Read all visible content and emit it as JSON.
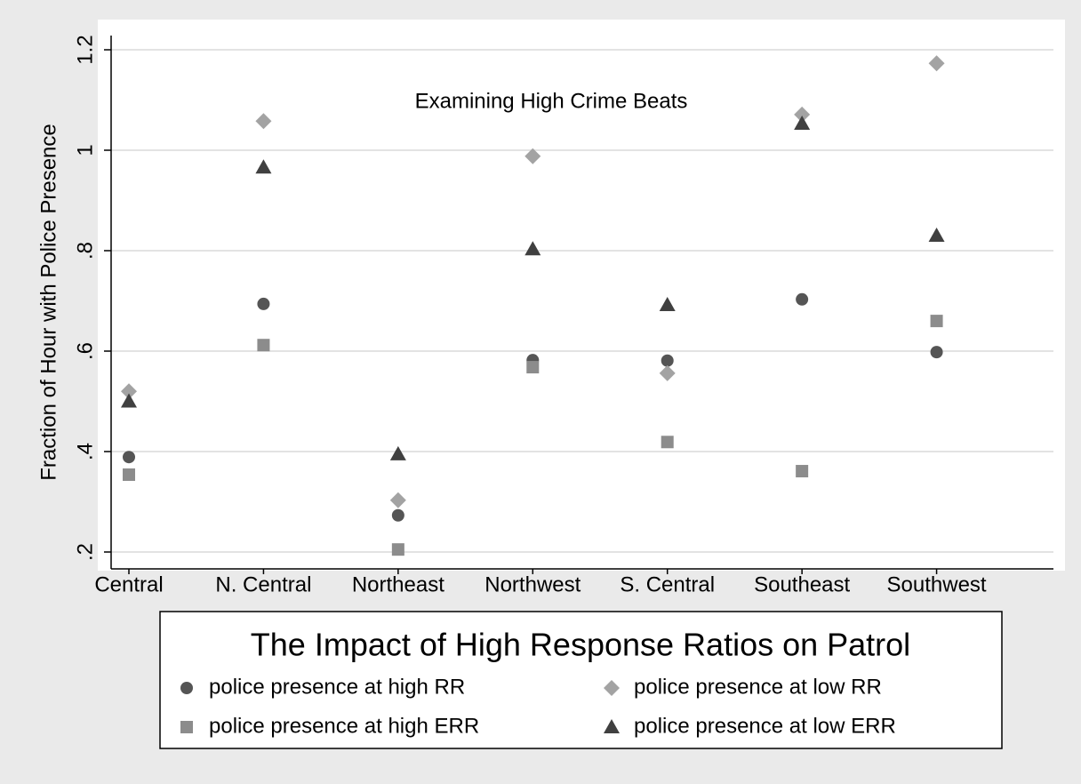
{
  "chart_data": {
    "type": "scatter",
    "annotation": "Examining High Crime Beats",
    "y_label": "Fraction of Hour with Police Presence",
    "legend_title": "The Impact of High Response Ratios on Patrol",
    "categories": [
      "Central",
      "N. Central",
      "Northeast",
      "Northwest",
      "S. Central",
      "Southeast",
      "Southwest"
    ],
    "series": [
      {
        "name": "police presence at high RR",
        "color": "#555555",
        "marker": "circle",
        "values": [
          0.389,
          0.694,
          0.273,
          0.582,
          0.581,
          0.703,
          0.598
        ]
      },
      {
        "name": "police presence at low RR",
        "color": "#a3a3a3",
        "marker": "diamond",
        "values": [
          0.52,
          1.058,
          0.303,
          0.988,
          0.556,
          1.071,
          1.173
        ]
      },
      {
        "name": "police presence at high ERR",
        "color": "#8c8c8c",
        "marker": "square",
        "values": [
          0.354,
          0.612,
          0.205,
          0.568,
          0.419,
          0.361,
          0.66
        ]
      },
      {
        "name": "police presence at low ERR",
        "color": "#404040",
        "marker": "triangle",
        "values": [
          0.5,
          0.966,
          0.395,
          0.803,
          0.692,
          1.053,
          0.83
        ]
      }
    ],
    "ylim": [
      0.2,
      1.2
    ],
    "yticks": [
      {
        "value": 0.2,
        "label": ".2"
      },
      {
        "value": 0.4,
        "label": ".4"
      },
      {
        "value": 0.6,
        "label": ".6"
      },
      {
        "value": 0.8,
        "label": ".8"
      },
      1,
      1.2
    ],
    "grid": true
  }
}
